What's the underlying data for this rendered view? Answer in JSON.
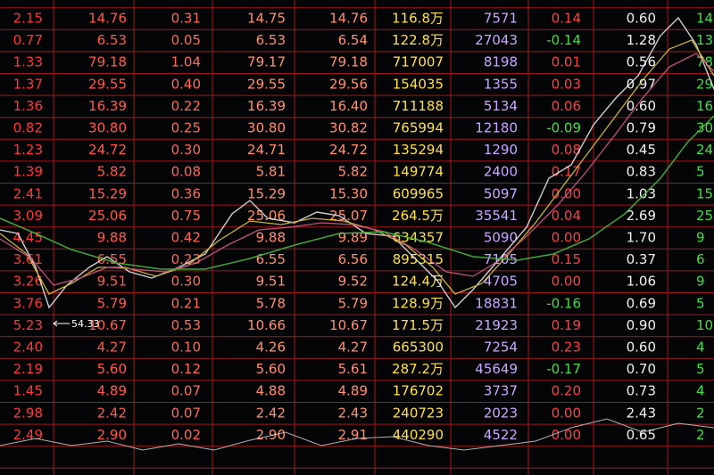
{
  "table": {
    "rows": [
      [
        "2.15",
        "14.76",
        "0.31",
        "14.75",
        "14.76",
        "116.8万",
        "7571",
        "0.14",
        "0.60",
        "14"
      ],
      [
        "0.77",
        "6.53",
        "0.05",
        "6.53",
        "6.54",
        "122.8万",
        "27043",
        "-0.14",
        "1.28",
        "13"
      ],
      [
        "1.33",
        "79.18",
        "1.04",
        "79.17",
        "79.18",
        "717007",
        "8198",
        "0.01",
        "0.56",
        "78"
      ],
      [
        "1.37",
        "29.55",
        "0.40",
        "29.55",
        "29.56",
        "154035",
        "1355",
        "0.03",
        "0.97",
        "29"
      ],
      [
        "1.36",
        "16.39",
        "0.22",
        "16.39",
        "16.40",
        "711188",
        "5134",
        "0.06",
        "0.60",
        "16"
      ],
      [
        "0.82",
        "30.80",
        "0.25",
        "30.80",
        "30.82",
        "765994",
        "12180",
        "-0.09",
        "0.79",
        "30"
      ],
      [
        "1.23",
        "24.72",
        "0.30",
        "24.71",
        "24.72",
        "135294",
        "1290",
        "0.08",
        "0.45",
        "24"
      ],
      [
        "1.39",
        "5.82",
        "0.08",
        "5.81",
        "5.82",
        "149774",
        "2400",
        "0.17",
        "0.83",
        "5"
      ],
      [
        "2.41",
        "15.29",
        "0.36",
        "15.29",
        "15.30",
        "609965",
        "5097",
        "0.00",
        "1.03",
        "15"
      ],
      [
        "3.09",
        "25.06",
        "0.75",
        "25.06",
        "25.07",
        "264.5万",
        "35541",
        "0.04",
        "2.69",
        "25"
      ],
      [
        "4.45",
        "9.88",
        "0.42",
        "9.88",
        "9.89",
        "634357",
        "5090",
        "0.00",
        "1.70",
        "9"
      ],
      [
        "3.61",
        "6.55",
        "0.23",
        "6.55",
        "6.56",
        "895315",
        "7105",
        "0.15",
        "0.37",
        "6"
      ],
      [
        "3.26",
        "9.51",
        "0.30",
        "9.51",
        "9.52",
        "124.4万",
        "4705",
        "0.00",
        "1.06",
        "9"
      ],
      [
        "3.76",
        "5.79",
        "0.21",
        "5.78",
        "5.79",
        "128.9万",
        "18831",
        "-0.16",
        "0.69",
        "5"
      ],
      [
        "5.23",
        "10.67",
        "0.53",
        "10.66",
        "10.67",
        "171.5万",
        "21923",
        "0.19",
        "0.90",
        "10"
      ],
      [
        "2.40",
        "4.27",
        "0.10",
        "4.26",
        "4.27",
        "665300",
        "7254",
        "0.23",
        "0.60",
        "4"
      ],
      [
        "2.19",
        "5.60",
        "0.12",
        "5.60",
        "5.61",
        "287.2万",
        "45649",
        "-0.17",
        "0.70",
        "5"
      ],
      [
        "1.45",
        "4.89",
        "0.07",
        "4.88",
        "4.89",
        "176702",
        "3737",
        "0.20",
        "0.73",
        "4"
      ],
      [
        "2.98",
        "2.42",
        "0.07",
        "2.42",
        "2.43",
        "240723",
        "2023",
        "0.00",
        "2.43",
        "2"
      ],
      [
        "2.49",
        "2.90",
        "0.02",
        "2.90",
        "2.91",
        "440290",
        "4522",
        "0.00",
        "0.65",
        "2"
      ]
    ]
  },
  "annotation": "54.33"
}
